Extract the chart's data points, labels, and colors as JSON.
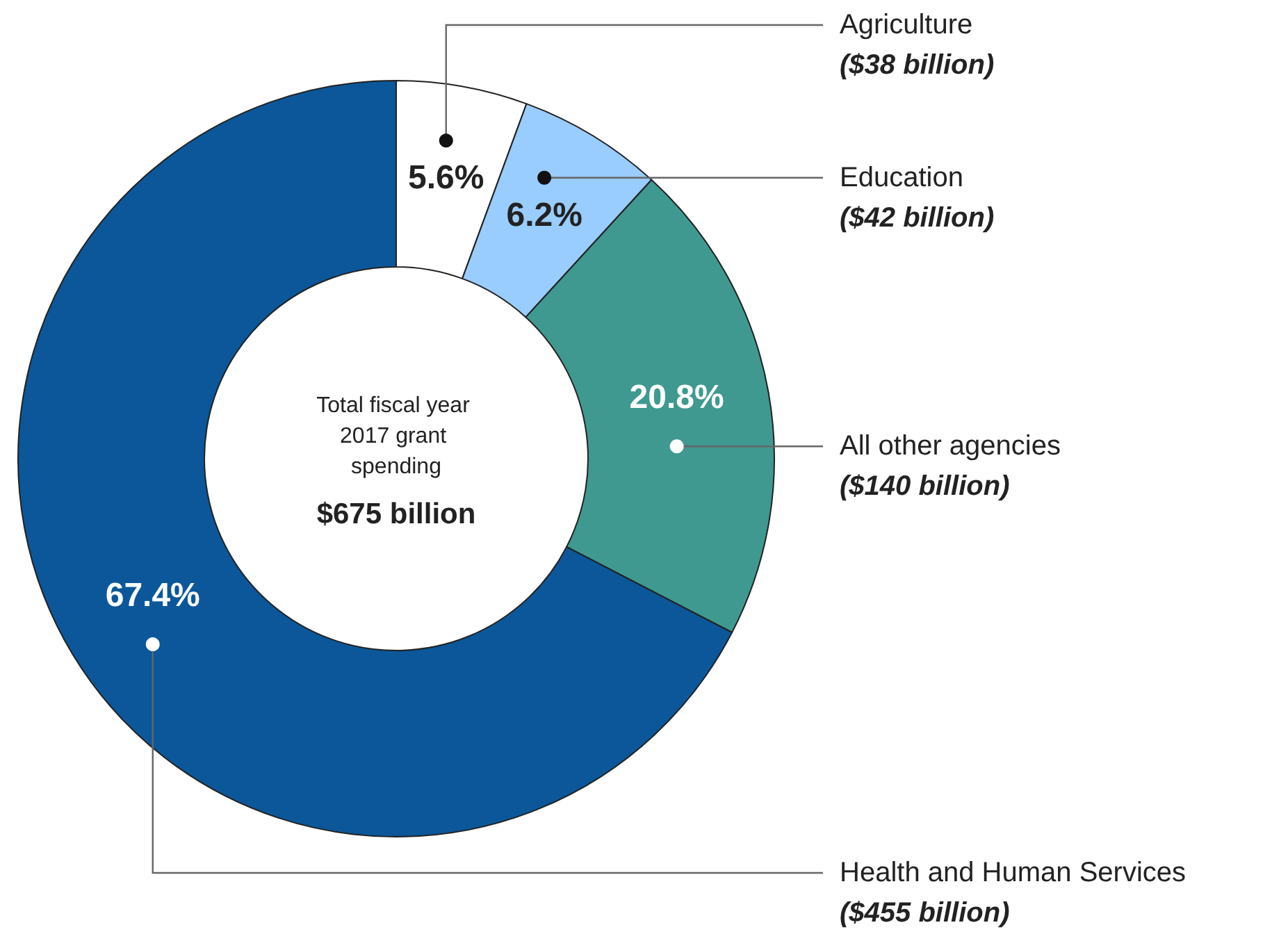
{
  "chart_data": {
    "type": "donut",
    "categories": [
      "Agriculture",
      "Education",
      "All other agencies",
      "Health and Human Services"
    ],
    "values": [
      5.6,
      6.2,
      20.8,
      67.4
    ],
    "value_labels": [
      "5.6%",
      "6.2%",
      "20.8%",
      "67.4%"
    ],
    "colors": [
      "#ffffff",
      "#99ccff",
      "#3f9990",
      "#0b5799"
    ],
    "annotations": [
      "Total fiscal year 2017 grant spending",
      "$675 billion",
      {
        "text": "($38 billion)",
        "x": "Agriculture"
      },
      {
        "text": "($42 billion)",
        "x": "Education"
      },
      {
        "text": "($140 billion)",
        "x": "All other agencies"
      },
      {
        "text": "($455 billion)",
        "x": "Health and Human Services"
      }
    ]
  }
}
